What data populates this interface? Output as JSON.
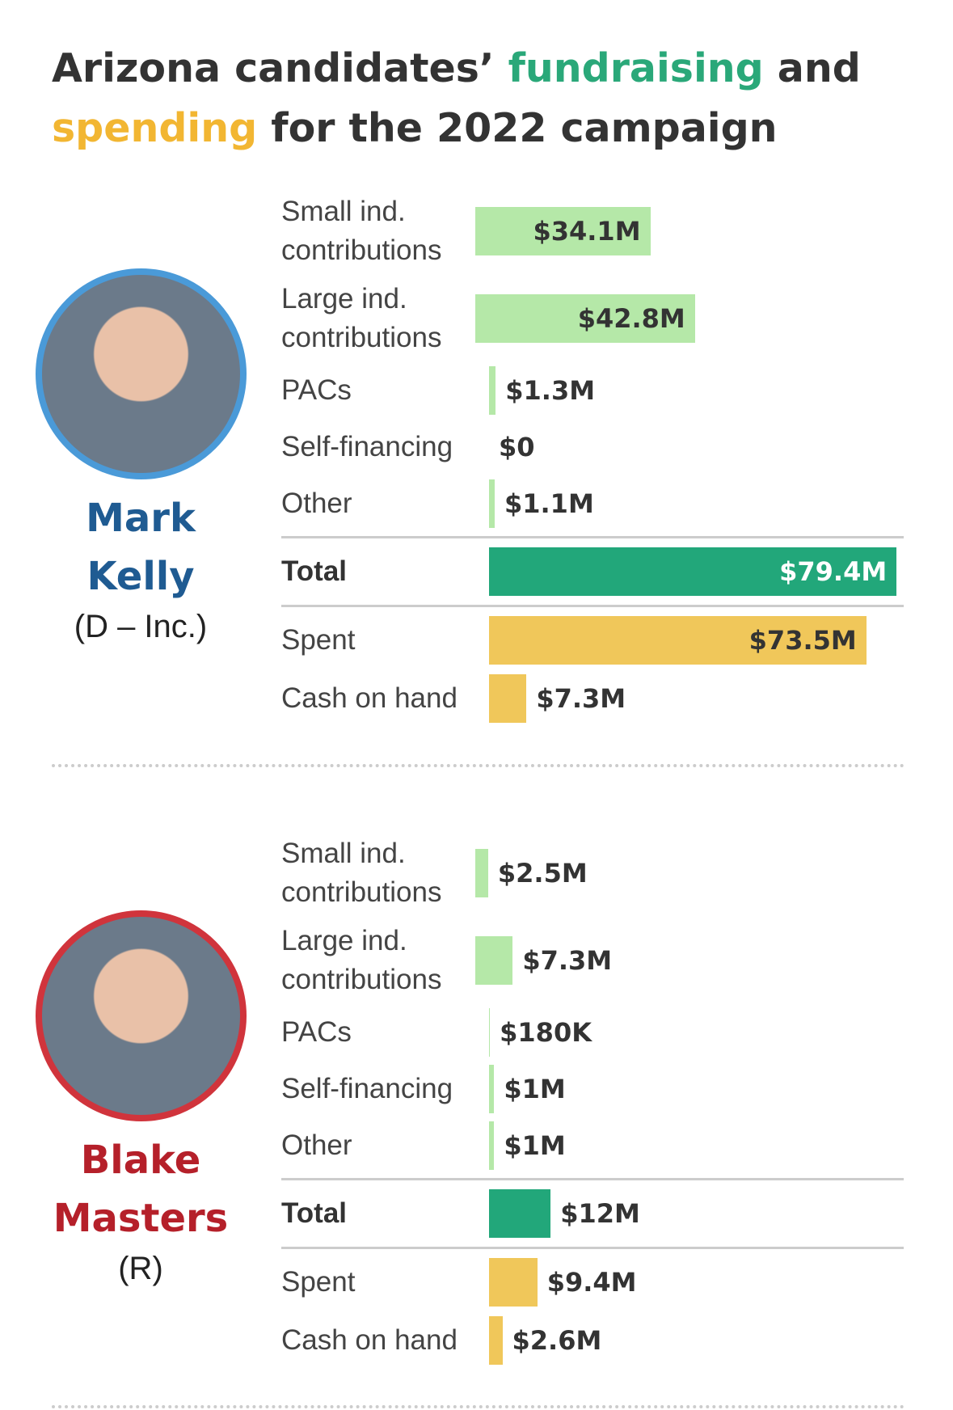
{
  "title_parts": [
    "Arizona candidates’",
    "fundraising",
    "and",
    "spending",
    "for the 2022 campaign"
  ],
  "chart_data": [
    {
      "type": "bar",
      "orientation": "horizontal",
      "name": "Mark Kelly",
      "party": "(D – Inc.)",
      "ring_color": "#4a9ad8",
      "name_color": "#1f5b92",
      "categories": [
        "Small ind. contributions",
        "Large ind. contributions",
        "PACs",
        "Self-financing",
        "Other",
        "Total",
        "Spent",
        "Cash on hand"
      ],
      "values": [
        34.1,
        42.8,
        1.3,
        0,
        1.1,
        79.4,
        73.5,
        7.3
      ],
      "value_labels": [
        "$34.1M",
        "$42.8M",
        "$1.3M",
        "$0",
        "$1.1M",
        "$79.4M",
        "$73.5M",
        "$7.3M"
      ],
      "colors": [
        "#b5e8a8",
        "#b5e8a8",
        "#b5e8a8",
        "#b5e8a8",
        "#b5e8a8",
        "#22a77a",
        "#f0c75a",
        "#f0c75a"
      ],
      "xlim": [
        0,
        80
      ]
    },
    {
      "type": "bar",
      "orientation": "horizontal",
      "name": "Blake Masters",
      "party": "(R)",
      "ring_color": "#d0343c",
      "name_color": "#b5202a",
      "categories": [
        "Small ind. contributions",
        "Large ind. contributions",
        "PACs",
        "Self-financing",
        "Other",
        "Total",
        "Spent",
        "Cash on hand"
      ],
      "values": [
        2.5,
        7.3,
        0.18,
        1,
        1,
        12,
        9.4,
        2.6
      ],
      "value_labels": [
        "$2.5M",
        "$7.3M",
        "$180K",
        "$1M",
        "$1M",
        "$12M",
        "$9.4M",
        "$2.6M"
      ],
      "colors": [
        "#b5e8a8",
        "#b5e8a8",
        "#b5e8a8",
        "#b5e8a8",
        "#b5e8a8",
        "#22a77a",
        "#f0c75a",
        "#f0c75a"
      ],
      "xlim": [
        0,
        80
      ]
    }
  ]
}
